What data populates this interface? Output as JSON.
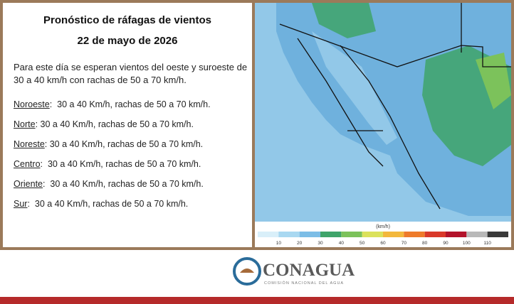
{
  "header": {
    "title": "Pronóstico de ráfagas de vientos",
    "date": "22 de mayo de 2026"
  },
  "intro": "Para este día se esperan vientos del oeste y suroeste de 30 a 40 km/h con rachas de 50 a 70 km/h.",
  "regions": [
    {
      "name": "Noroeste",
      "text": ":  30 a 40 Km/h, rachas de 50 a 70 km/h."
    },
    {
      "name": "Norte",
      "text": ": 30 a 40 Km/h, rachas de 50 a 70 km/h."
    },
    {
      "name": "Noreste",
      "text": ": 30 a 40 Km/h, rachas de 50 a 70 km/h."
    },
    {
      "name": "Centro",
      "text": ":  30 a 40 Km/h, rachas de 50 a 70 km/h."
    },
    {
      "name": "Oriente",
      "text": ":  30 a 40 Km/h, rachas de 50 a 70 km/h."
    },
    {
      "name": "Sur",
      "text": ":  30 a 40 Km/h, rachas de 50 a 70 km/h."
    }
  ],
  "legend": {
    "unit": "(km/h)",
    "labels": [
      "10",
      "20",
      "30",
      "40",
      "50",
      "60",
      "70",
      "80",
      "90",
      "100",
      "110"
    ],
    "colors": [
      "#d9eff9",
      "#a9d8f1",
      "#7cbde6",
      "#3fa46a",
      "#7cc25b",
      "#dbe25c",
      "#f3b83c",
      "#ee7b2b",
      "#d9392a",
      "#b3132b",
      "#b9b9b9",
      "#3a3a3a"
    ]
  },
  "footer": {
    "brand": "CONAGUA",
    "subtitle": "COMISIÓN NACIONAL DEL AGUA"
  }
}
